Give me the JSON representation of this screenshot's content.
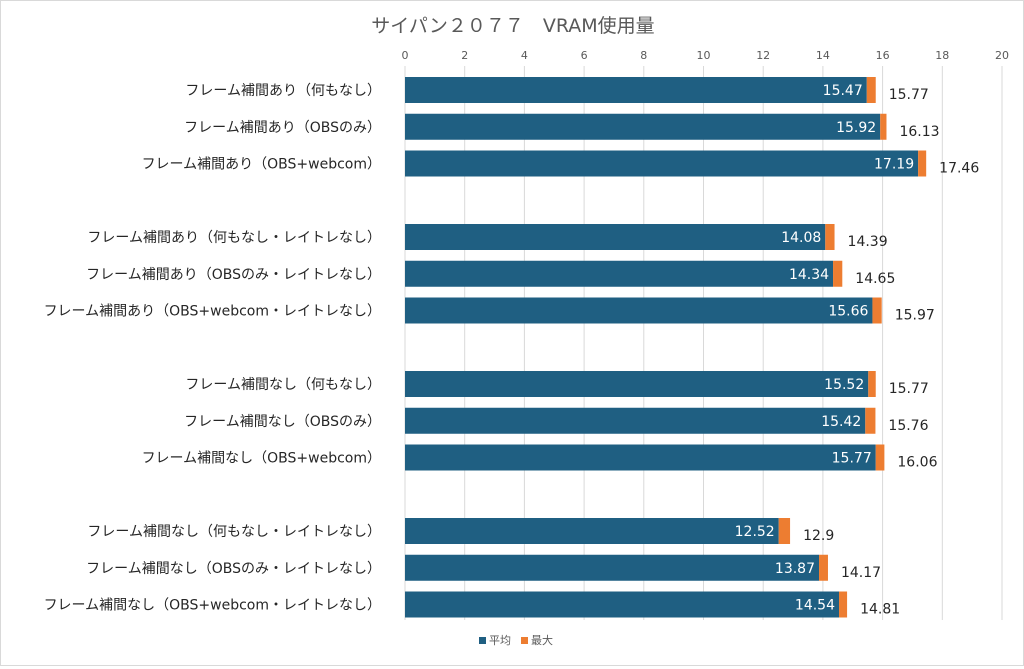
{
  "chart_data": {
    "type": "bar",
    "orientation": "horizontal",
    "stacked": true,
    "title": "サイパン２０７７　VRAM使用量",
    "xlim": [
      0,
      20
    ],
    "xticks": [
      0,
      2,
      4,
      6,
      8,
      10,
      12,
      14,
      16,
      18,
      20
    ],
    "x_axis_position": "top",
    "grid": true,
    "legend_position": "bottom",
    "colors": {
      "avg": "#1f5f82",
      "max": "#ed7d31"
    },
    "groups": [
      {
        "categories": [
          "フレーム補間あり（何もなし）",
          "フレーム補間あり（OBSのみ）",
          "フレーム補間あり（OBS+webcom）"
        ],
        "avg": [
          15.47,
          15.92,
          17.19
        ],
        "max": [
          15.77,
          16.13,
          17.46
        ]
      },
      {
        "categories": [
          "フレーム補間あり（何もなし・レイトレなし）",
          "フレーム補間あり（OBSのみ・レイトレなし）",
          "フレーム補間あり（OBS+webcom・レイトレなし）"
        ],
        "avg": [
          14.08,
          14.34,
          15.66
        ],
        "max": [
          14.39,
          14.65,
          15.97
        ]
      },
      {
        "categories": [
          "フレーム補間なし（何もなし）",
          "フレーム補間なし（OBSのみ）",
          "フレーム補間なし（OBS+webcom）"
        ],
        "avg": [
          15.52,
          15.42,
          15.77
        ],
        "max": [
          15.77,
          15.76,
          16.06
        ]
      },
      {
        "categories": [
          "フレーム補間なし（何もなし・レイトレなし）",
          "フレーム補間なし（OBSのみ・レイトレなし）",
          "フレーム補間なし（OBS+webcom・レイトレなし）"
        ],
        "avg": [
          12.52,
          13.87,
          14.54
        ],
        "max": [
          12.9,
          14.17,
          14.81
        ]
      }
    ],
    "series": [
      {
        "name": "平均",
        "key": "avg"
      },
      {
        "name": "最大",
        "key": "max"
      }
    ]
  }
}
